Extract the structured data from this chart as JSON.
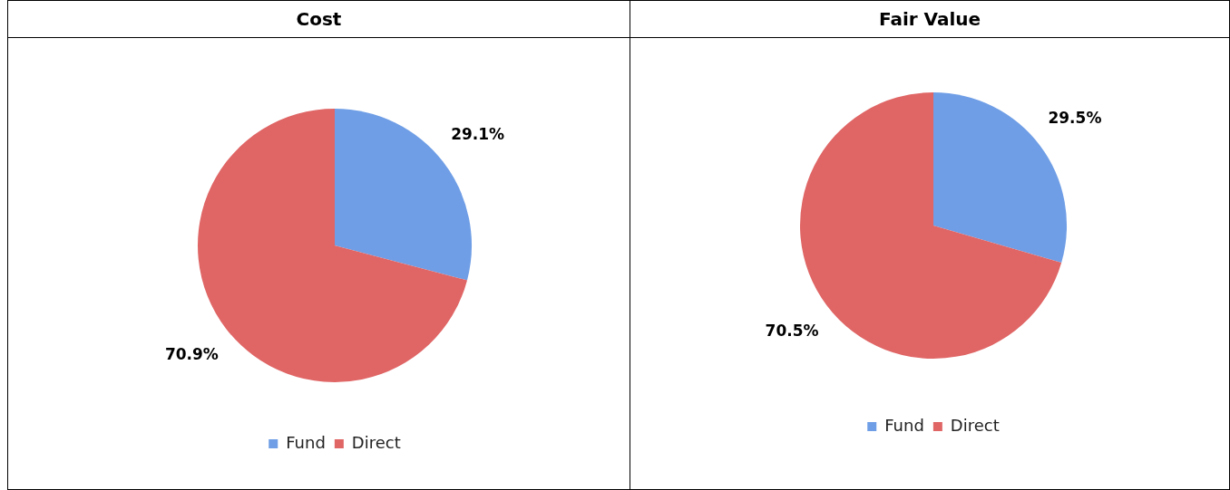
{
  "chart_data": [
    {
      "type": "pie",
      "title": "Cost",
      "categories": [
        "Fund",
        "Direct"
      ],
      "values": [
        29.1,
        70.9
      ],
      "colors": [
        "#6f9ee6",
        "#e06565"
      ],
      "value_labels": [
        "29.1%",
        "70.9%"
      ],
      "legend": "bottom"
    },
    {
      "type": "pie",
      "title": "Fair Value",
      "categories": [
        "Fund",
        "Direct"
      ],
      "values": [
        29.5,
        70.5
      ],
      "colors": [
        "#6f9ee6",
        "#e06565"
      ],
      "value_labels": [
        "29.5%",
        "70.5%"
      ],
      "legend": "bottom"
    }
  ]
}
